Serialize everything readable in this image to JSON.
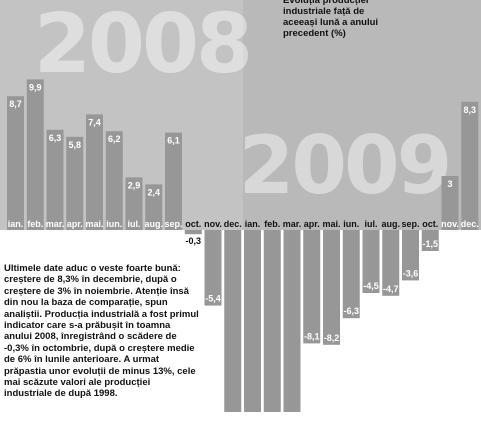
{
  "title": "Evoluția producției industriale față de aceeași lună a anului precedent (%)",
  "year_labels": {
    "first": "2008",
    "second": "2009"
  },
  "note": "Ultimele date aduc o veste foarte bună: creștere de 8,3% în decembrie, după o creștere de 3% în noiembrie. Atenție însă din nou la baza de comparație, spun analiștii. Producția industrială a fost primul indicator care s-a prăbușit în toamna anului 2008, înregistrând o scădere de -0,3% în octombrie, după o creștere medie de 6% în lunile anterioare. A urmat prăpastia unor evoluții de minus 13%, cele mai scăzute valori ale producției industriale de după 1998.",
  "colors": {
    "background_2008": "#c3c3c3",
    "background_2009": "#b9b9b9",
    "bar": "#979797",
    "bar_text": "#ffffff",
    "negative_text": "#111111"
  },
  "chart_data": {
    "type": "bar",
    "title": "Evoluția producției industriale față de aceeași lună a anului precedent (%)",
    "categories": [
      "ian.",
      "feb.",
      "mar.",
      "apr.",
      "mai.",
      "iun.",
      "iul.",
      "aug.",
      "sep.",
      "oct.",
      "nov.",
      "dec.",
      "ian.",
      "feb.",
      "mar.",
      "apr.",
      "mai.",
      "iun.",
      "iul.",
      "aug.",
      "sep.",
      "oct.",
      "nov.",
      "dec."
    ],
    "value_labels": [
      "8,7",
      "9,9",
      "6,3",
      "5,8",
      "7,4",
      "6,2",
      "2,9",
      "2,4",
      "6,1",
      "-0,3",
      "-5,4",
      "",
      "",
      "",
      "",
      "-8,1",
      "-8,2",
      "-6,3",
      "-4,5",
      "-4,7",
      "-3,6",
      "-1,5",
      "3",
      "8,3"
    ],
    "series": [
      {
        "values": [
          8.7,
          9.9,
          6.3,
          5.8,
          7.4,
          6.2,
          2.9,
          2.4,
          6.1,
          -0.3,
          -5.4,
          -13,
          -13,
          -13,
          -13,
          -8.1,
          -8.2,
          -6.3,
          -4.5,
          -4.7,
          -3.6,
          -1.5,
          3,
          8.3
        ]
      }
    ],
    "groups": [
      "2008",
      "2008",
      "2008",
      "2008",
      "2008",
      "2008",
      "2008",
      "2008",
      "2008",
      "2008",
      "2008",
      "2008",
      "2009",
      "2009",
      "2009",
      "2009",
      "2009",
      "2009",
      "2009",
      "2009",
      "2009",
      "2009",
      "2009",
      "2009"
    ],
    "grid": false,
    "legend": "none"
  }
}
